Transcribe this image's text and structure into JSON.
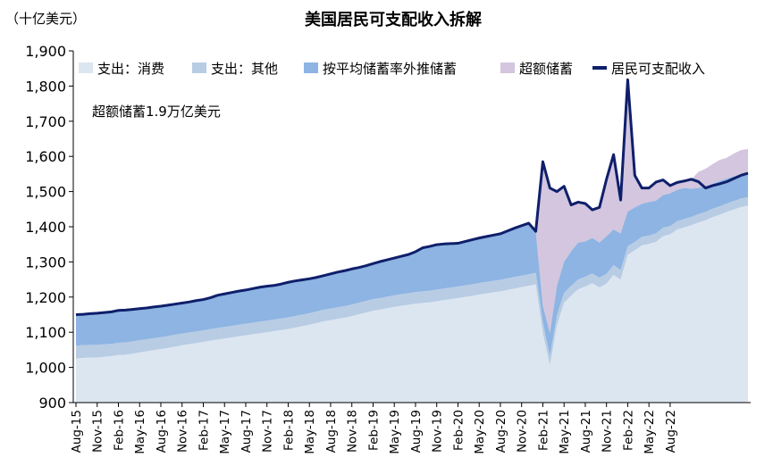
{
  "chart_data": {
    "type": "area",
    "title": "美国居民可支配收入拆解",
    "unit_label": "（十亿美元）",
    "ylim": [
      900,
      1900
    ],
    "yticks": [
      900,
      1000,
      1100,
      1200,
      1300,
      1400,
      1500,
      1600,
      1700,
      1800,
      1900
    ],
    "ytick_labels": [
      "900",
      "1,000",
      "1,100",
      "1,200",
      "1,300",
      "1,400",
      "1,500",
      "1,600",
      "1,700",
      "1,800",
      "1,900"
    ],
    "xtick_labels": [
      "Aug-15",
      "Nov-15",
      "Feb-16",
      "May-16",
      "Aug-16",
      "Nov-16",
      "Feb-17",
      "May-17",
      "Aug-17",
      "Nov-17",
      "Feb-18",
      "May-18",
      "Aug-18",
      "Nov-18",
      "Feb-19",
      "May-19",
      "Aug-19",
      "Nov-19",
      "Feb-20",
      "May-20",
      "Aug-20",
      "Nov-20",
      "Feb-21",
      "May-21",
      "Aug-21",
      "Nov-21",
      "Feb-22",
      "May-22",
      "Aug-22"
    ],
    "annotation": "超额储蓄1.9万亿美元",
    "legend": [
      {
        "name": "支出：消费",
        "color": "#dce6f1",
        "kind": "area"
      },
      {
        "name": "支出：其他",
        "color": "#b8cce4",
        "kind": "area"
      },
      {
        "name": "按平均储蓄率外推储蓄",
        "color": "#8db4e2",
        "kind": "area"
      },
      {
        "name": "超额储蓄",
        "color": "#d3c6de",
        "kind": "area"
      },
      {
        "name": "居民可支配收入",
        "color": "#0f1f6b",
        "kind": "line"
      }
    ],
    "series": [
      {
        "name": "支出：消费",
        "values": [
          1025,
          1027,
          1028,
          1028,
          1030,
          1032,
          1035,
          1036,
          1039,
          1042,
          1046,
          1049,
          1052,
          1055,
          1059,
          1063,
          1066,
          1069,
          1072,
          1076,
          1079,
          1082,
          1085,
          1088,
          1091,
          1094,
          1097,
          1100,
          1103,
          1106,
          1109,
          1113,
          1117,
          1121,
          1126,
          1131,
          1134,
          1138,
          1141,
          1146,
          1151,
          1156,
          1161,
          1164,
          1168,
          1172,
          1175,
          1178,
          1181,
          1183,
          1185,
          1188,
          1191,
          1194,
          1197,
          1200,
          1203,
          1207,
          1210,
          1213,
          1216,
          1220,
          1224,
          1228,
          1232,
          1236,
          1097,
          1005,
          1120,
          1184,
          1204,
          1222,
          1230,
          1239,
          1227,
          1238,
          1263,
          1249,
          1320,
          1333,
          1347,
          1351,
          1357,
          1373,
          1378,
          1392,
          1398,
          1404,
          1412,
          1418,
          1427,
          1434,
          1442,
          1449,
          1456,
          1460
        ]
      },
      {
        "name": "支出：其他",
        "values": [
          1062,
          1063,
          1064,
          1064,
          1066,
          1067,
          1070,
          1071,
          1074,
          1077,
          1080,
          1083,
          1086,
          1089,
          1093,
          1096,
          1099,
          1102,
          1105,
          1109,
          1112,
          1115,
          1118,
          1121,
          1124,
          1127,
          1130,
          1133,
          1136,
          1139,
          1142,
          1146,
          1150,
          1154,
          1159,
          1164,
          1167,
          1171,
          1174,
          1179,
          1184,
          1189,
          1194,
          1197,
          1201,
          1205,
          1208,
          1211,
          1214,
          1216,
          1218,
          1221,
          1224,
          1227,
          1230,
          1233,
          1236,
          1240,
          1243,
          1246,
          1249,
          1253,
          1257,
          1261,
          1265,
          1269,
          1128,
          1032,
          1148,
          1212,
          1232,
          1250,
          1258,
          1267,
          1255,
          1266,
          1291,
          1277,
          1344,
          1357,
          1371,
          1375,
          1381,
          1397,
          1402,
          1416,
          1422,
          1428,
          1436,
          1442,
          1451,
          1458,
          1466,
          1473,
          1480,
          1484
        ]
      },
      {
        "name": "按平均储蓄率外推储蓄",
        "values": [
          1150,
          1151,
          1153,
          1154,
          1156,
          1158,
          1162,
          1163,
          1165,
          1167,
          1169,
          1172,
          1174,
          1177,
          1180,
          1183,
          1186,
          1190,
          1193,
          1198,
          1205,
          1209,
          1213,
          1217,
          1220,
          1224,
          1228,
          1231,
          1233,
          1237,
          1242,
          1246,
          1249,
          1252,
          1256,
          1261,
          1266,
          1271,
          1275,
          1280,
          1284,
          1289,
          1295,
          1301,
          1306,
          1311,
          1316,
          1321,
          1329,
          1340,
          1344,
          1349,
          1351,
          1352,
          1353,
          1358,
          1363,
          1368,
          1372,
          1376,
          1380,
          1388,
          1396,
          1403,
          1410,
          1387,
          1175,
          1098,
          1232,
          1300,
          1330,
          1355,
          1358,
          1368,
          1355,
          1373,
          1392,
          1381,
          1443,
          1455,
          1465,
          1470,
          1474,
          1490,
          1495,
          1505,
          1510,
          1508,
          1510,
          1515,
          1522,
          1530,
          1537,
          1543,
          1549,
          1555
        ]
      },
      {
        "name": "超额储蓄",
        "values": [
          1150,
          1151,
          1153,
          1154,
          1156,
          1158,
          1162,
          1163,
          1165,
          1167,
          1169,
          1172,
          1174,
          1177,
          1180,
          1183,
          1186,
          1190,
          1193,
          1198,
          1205,
          1209,
          1213,
          1217,
          1220,
          1224,
          1228,
          1231,
          1233,
          1237,
          1242,
          1246,
          1249,
          1252,
          1256,
          1261,
          1266,
          1271,
          1275,
          1280,
          1284,
          1289,
          1295,
          1301,
          1306,
          1311,
          1316,
          1321,
          1329,
          1340,
          1344,
          1349,
          1351,
          1352,
          1353,
          1358,
          1363,
          1368,
          1372,
          1376,
          1380,
          1388,
          1396,
          1403,
          1410,
          1387,
          1585,
          1510,
          1500,
          1515,
          1462,
          1470,
          1466,
          1448,
          1455,
          1535,
          1605,
          1476,
          1818,
          1546,
          1510,
          1510,
          1527,
          1533,
          1517,
          1526,
          1530,
          1535,
          1556,
          1565,
          1578,
          1590,
          1596,
          1608,
          1618,
          1621
        ]
      },
      {
        "name": "居民可支配收入",
        "values": [
          1150,
          1151,
          1153,
          1154,
          1156,
          1158,
          1162,
          1163,
          1165,
          1167,
          1169,
          1172,
          1174,
          1177,
          1180,
          1183,
          1186,
          1190,
          1193,
          1198,
          1205,
          1209,
          1213,
          1217,
          1220,
          1224,
          1228,
          1231,
          1233,
          1237,
          1242,
          1246,
          1249,
          1252,
          1256,
          1261,
          1266,
          1271,
          1275,
          1280,
          1284,
          1289,
          1295,
          1301,
          1306,
          1311,
          1316,
          1321,
          1329,
          1340,
          1344,
          1349,
          1351,
          1352,
          1353,
          1358,
          1363,
          1368,
          1372,
          1376,
          1380,
          1388,
          1396,
          1403,
          1410,
          1387,
          1585,
          1510,
          1500,
          1515,
          1462,
          1470,
          1466,
          1448,
          1455,
          1535,
          1605,
          1476,
          1818,
          1546,
          1510,
          1510,
          1527,
          1533,
          1517,
          1526,
          1530,
          1535,
          1528,
          1510,
          1517,
          1522,
          1528,
          1537,
          1546,
          1552
        ]
      }
    ]
  }
}
